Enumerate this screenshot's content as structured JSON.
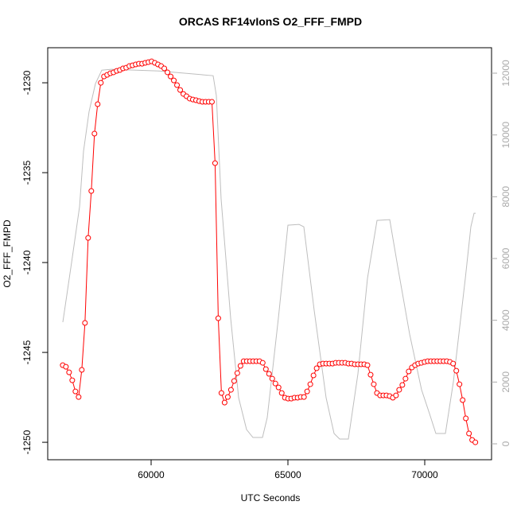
{
  "chart_data": {
    "type": "line",
    "title": "ORCAS RF14vIonS O2_FFF_FMPD",
    "x_label": "UTC Seconds",
    "y_label": "O2_FFF_FMPD",
    "xlim": [
      56221,
      72442
    ],
    "xticks": [
      60000,
      65000,
      70000
    ],
    "ylim": [
      -1250.97,
      -1228.05
    ],
    "yticks": [
      -1230,
      -1235,
      -1240,
      -1245,
      -1250
    ],
    "y2lim": [
      -515,
      12824
    ],
    "y2ticks": [
      0,
      2000,
      4000,
      6000,
      8000,
      10000,
      12000
    ],
    "y2_color": "#aaaaaa",
    "series": [
      {
        "color": "#ff0000",
        "markers": true,
        "x": [
          56770,
          56886,
          57002,
          57118,
          57234,
          57350,
          57466,
          57582,
          57698,
          57814,
          57930,
          58046,
          58162,
          58278,
          58394,
          58510,
          58626,
          58742,
          58858,
          58974,
          59090,
          59206,
          59322,
          59438,
          59554,
          59670,
          59786,
          59902,
          60018,
          60134,
          60250,
          60366,
          60482,
          60598,
          60714,
          60830,
          60946,
          61062,
          61178,
          61294,
          61410,
          61526,
          61642,
          61758,
          61874,
          61990,
          62106,
          62222,
          62338,
          62454,
          62570,
          62686,
          62802,
          62918,
          63034,
          63150,
          63266,
          63382,
          63498,
          63614,
          63730,
          63846,
          63962,
          64078,
          64194,
          64310,
          64426,
          64542,
          64658,
          64774,
          64890,
          65006,
          65122,
          65238,
          65354,
          65470,
          65586,
          65702,
          65818,
          65934,
          66050,
          66166,
          66282,
          66398,
          66514,
          66630,
          66746,
          66862,
          66978,
          67094,
          67210,
          67326,
          67442,
          67558,
          67674,
          67790,
          67906,
          68022,
          68138,
          68254,
          68370,
          68486,
          68602,
          68718,
          68834,
          68950,
          69066,
          69182,
          69298,
          69414,
          69530,
          69646,
          69762,
          69878,
          69994,
          70110,
          70226,
          70342,
          70458,
          70574,
          70690,
          70806,
          70922,
          71038,
          71154,
          71270,
          71386,
          71502,
          71618,
          71734,
          71850
        ],
        "values": [
          -1245.71,
          -1245.8,
          -1246.11,
          -1246.55,
          -1247.17,
          -1247.48,
          -1245.97,
          -1243.36,
          -1238.63,
          -1236.02,
          -1232.83,
          -1231.19,
          -1230.0,
          -1229.65,
          -1229.56,
          -1229.47,
          -1229.42,
          -1229.34,
          -1229.29,
          -1229.2,
          -1229.16,
          -1229.07,
          -1229.03,
          -1228.98,
          -1228.94,
          -1228.94,
          -1228.89,
          -1228.85,
          -1228.81,
          -1228.89,
          -1228.98,
          -1229.07,
          -1229.2,
          -1229.42,
          -1229.65,
          -1229.87,
          -1230.13,
          -1230.4,
          -1230.62,
          -1230.75,
          -1230.88,
          -1230.93,
          -1230.97,
          -1231.02,
          -1231.06,
          -1231.06,
          -1231.06,
          -1231.06,
          -1234.47,
          -1243.1,
          -1247.26,
          -1247.79,
          -1247.48,
          -1247.08,
          -1246.59,
          -1246.15,
          -1245.75,
          -1245.49,
          -1245.49,
          -1245.49,
          -1245.49,
          -1245.49,
          -1245.49,
          -1245.58,
          -1245.93,
          -1246.19,
          -1246.46,
          -1246.73,
          -1246.95,
          -1247.26,
          -1247.52,
          -1247.57,
          -1247.57,
          -1247.52,
          -1247.52,
          -1247.48,
          -1247.48,
          -1247.17,
          -1246.77,
          -1246.28,
          -1245.88,
          -1245.66,
          -1245.62,
          -1245.62,
          -1245.62,
          -1245.62,
          -1245.58,
          -1245.58,
          -1245.58,
          -1245.58,
          -1245.62,
          -1245.62,
          -1245.66,
          -1245.66,
          -1245.66,
          -1245.66,
          -1245.71,
          -1246.24,
          -1246.77,
          -1247.26,
          -1247.39,
          -1247.39,
          -1247.39,
          -1247.43,
          -1247.52,
          -1247.39,
          -1247.08,
          -1246.81,
          -1246.46,
          -1246.06,
          -1245.84,
          -1245.71,
          -1245.62,
          -1245.58,
          -1245.53,
          -1245.49,
          -1245.49,
          -1245.49,
          -1245.49,
          -1245.49,
          -1245.49,
          -1245.49,
          -1245.53,
          -1245.62,
          -1246.02,
          -1246.77,
          -1247.65,
          -1248.67,
          -1249.51,
          -1249.87,
          -1250.0
        ]
      },
      {
        "color": "#bebebe",
        "axis": "y2",
        "markers": false,
        "x": [
          56773,
          57093,
          57384,
          57529,
          57733,
          57965,
          58198,
          58547,
          60291,
          62267,
          62384,
          62558,
          62907,
          63198,
          63488,
          63721,
          64070,
          64244,
          64651,
          65000,
          65407,
          65581,
          65959,
          66395,
          66686,
          66890,
          67209,
          67558,
          67907,
          68256,
          68721,
          69012,
          69448,
          69884,
          70174,
          70407,
          70756,
          71047,
          71483,
          71686,
          71802,
          71860
        ],
        "values": [
          3938,
          5869,
          7671,
          9472,
          10759,
          11660,
          12098,
          12124,
          12072,
          11918,
          11274,
          7928,
          4067,
          1493,
          463,
          206,
          206,
          849,
          4067,
          7079,
          7104,
          7027,
          4324,
          1493,
          335,
          154,
          154,
          2265,
          5354,
          7233,
          7259,
          5740,
          3552,
          1750,
          978,
          335,
          335,
          2008,
          5354,
          7027,
          7465,
          7465
        ]
      }
    ]
  }
}
